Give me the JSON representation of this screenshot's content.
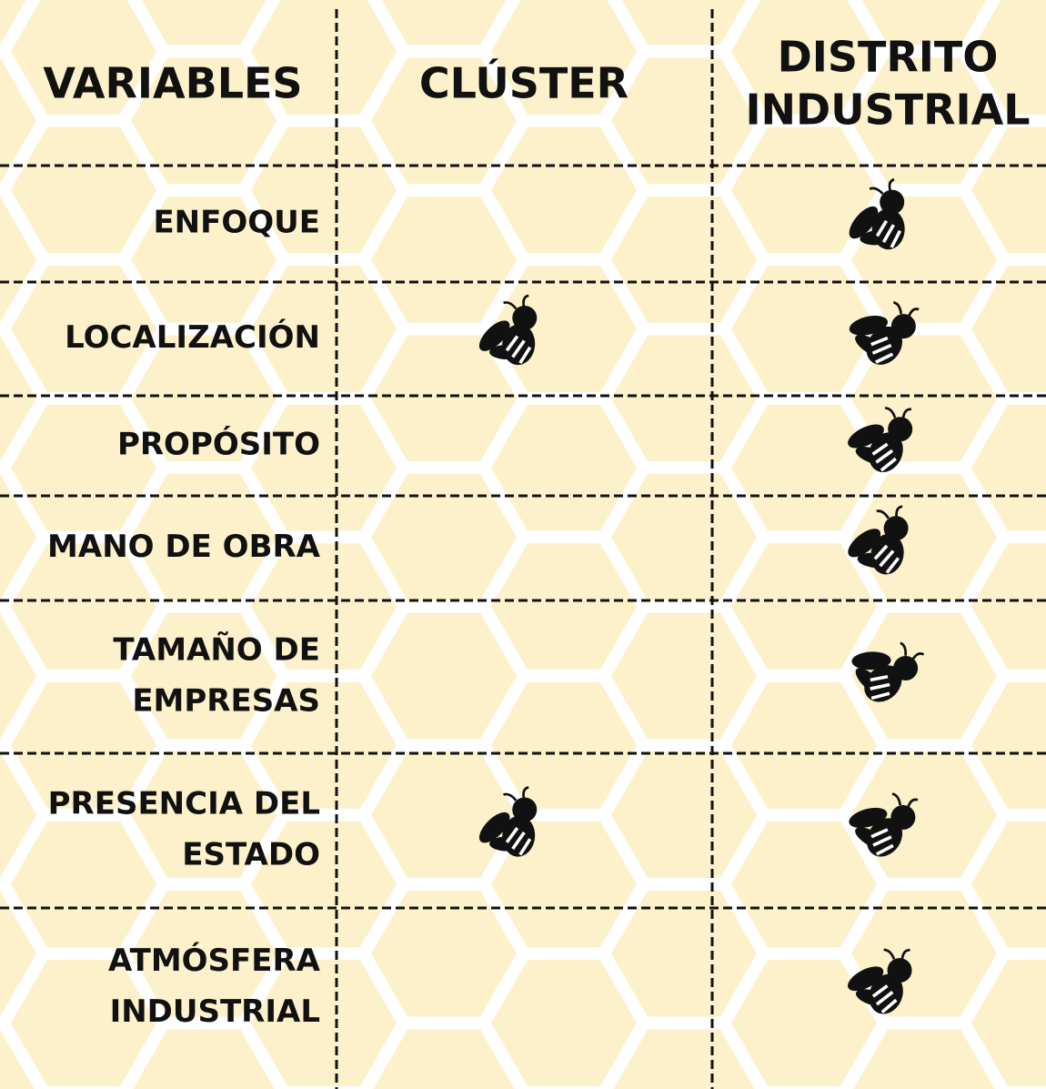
{
  "header": {
    "columns": [
      [
        "VARIABLES"
      ],
      [
        "CLÚSTER"
      ],
      [
        "DISTRITO",
        "INDUSTRIAL"
      ]
    ]
  },
  "table": {
    "rows": [
      {
        "label": [
          "ENFOQUE"
        ],
        "cluster": false,
        "district": true
      },
      {
        "label": [
          "LOCALIZACIÓN"
        ],
        "cluster": true,
        "district": true
      },
      {
        "label": [
          "PROPÓSITO"
        ],
        "cluster": false,
        "district": true
      },
      {
        "label": [
          "MANO DE OBRA"
        ],
        "cluster": false,
        "district": true
      },
      {
        "label": [
          "TAMAÑO DE",
          "EMPRESAS"
        ],
        "cluster": false,
        "district": true
      },
      {
        "label": [
          "PRESENCIA DEL",
          "ESTADO"
        ],
        "cluster": true,
        "district": true
      },
      {
        "label": [
          "ATMÓSFERA",
          "INDUSTRIAL"
        ],
        "cluster": false,
        "district": true
      }
    ]
  }
}
